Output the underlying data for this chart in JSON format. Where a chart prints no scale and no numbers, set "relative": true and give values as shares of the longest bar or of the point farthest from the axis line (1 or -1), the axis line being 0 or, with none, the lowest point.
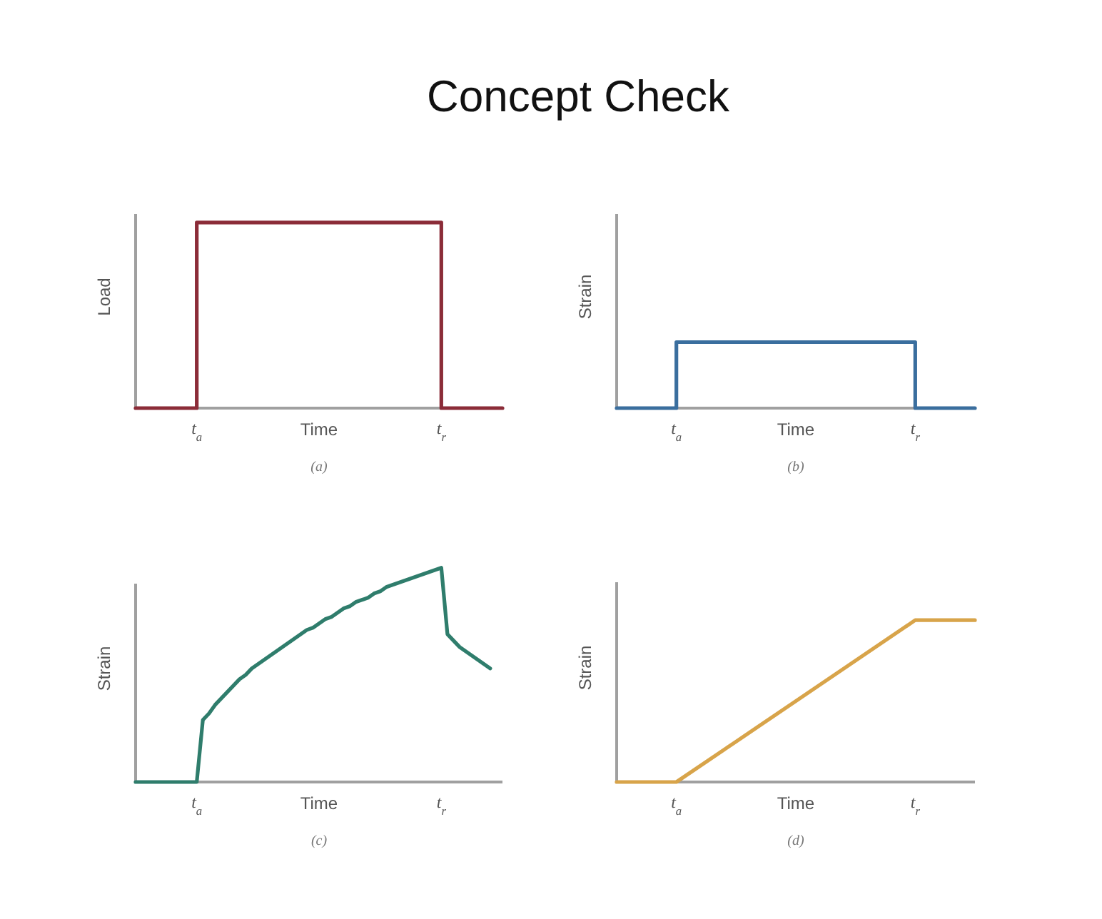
{
  "chart_data": [
    {
      "type": "step",
      "title": "Concept Check",
      "xlabel": "Time",
      "ylabel": "Load",
      "annotations": [
        "(a)"
      ],
      "relative": true,
      "tick_labels": "x",
      "color": "#8b2c38",
      "categories": [
        null,
        "t$_{a}$",
        null,
        null,
        null,
        "t$_{r}$",
        null
      ],
      "values": [
        0,
        1,
        1,
        1,
        1,
        0,
        0
      ]
    },
    {
      "type": "step",
      "xlabel": "Time",
      "ylabel": "Strain",
      "annotations": [
        "(b)"
      ],
      "relative": true,
      "tick_labels": "x",
      "color": "#3a6e9e",
      "categories": [
        null,
        "t$_{a}$",
        null,
        null,
        null,
        "t$_{r}$",
        null
      ],
      "values": [
        0,
        1,
        1,
        1,
        1,
        0,
        0
      ]
    },
    {
      "type": "line",
      "xlabel": "Time",
      "ylabel": "Strain",
      "annotations": [
        "(c)"
      ],
      "relative": true,
      "tick_labels": "x",
      "color": "#2f7d6c",
      "categories": [
        null,
        null,
        null,
        null,
        null,
        null,
        null,
        null,
        null,
        null,
        "t$_{a}$",
        null,
        null,
        null,
        null,
        null,
        null,
        null,
        null,
        null,
        null,
        null,
        null,
        null,
        null,
        null,
        null,
        null,
        null,
        null,
        null,
        null,
        null,
        null,
        null,
        null,
        null,
        null,
        null,
        null,
        null,
        null,
        null,
        null,
        null,
        null,
        null,
        null,
        null,
        null,
        "t$_{r}$",
        null,
        null,
        null,
        null,
        null,
        null,
        null,
        null,
        null,
        null
      ],
      "values": [
        0,
        0,
        0,
        0,
        0,
        0,
        0,
        0,
        0,
        0,
        0,
        0.29,
        0.32,
        0.36,
        0.39,
        0.42,
        0.45,
        0.48,
        0.5,
        0.53,
        0.55,
        0.57,
        0.59,
        0.61,
        0.63,
        0.65,
        0.67,
        0.69,
        0.71,
        0.72,
        0.74,
        0.76,
        0.77,
        0.79,
        0.81,
        0.82,
        0.84,
        0.85,
        0.86,
        0.88,
        0.89,
        0.91,
        0.92,
        0.93,
        0.94,
        0.95,
        0.96,
        0.97,
        0.98,
        0.99,
        1,
        0.69,
        0.66,
        0.63,
        0.61,
        0.59,
        0.57,
        0.55,
        0.53,
        null,
        null
      ]
    },
    {
      "type": "line",
      "xlabel": "Time",
      "ylabel": "Strain",
      "annotations": [
        "(d)"
      ],
      "relative": true,
      "tick_labels": "x",
      "color": "#d8a44a",
      "categories": [
        null,
        "t$_{a}$",
        null,
        null,
        null,
        "t$_{r}$",
        null
      ],
      "values": [
        0,
        0,
        0.25,
        0.5,
        0.75,
        1,
        1
      ]
    }
  ]
}
